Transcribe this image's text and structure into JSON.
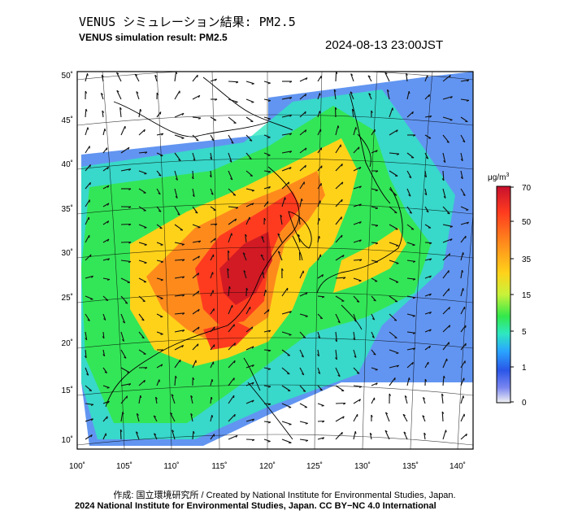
{
  "header": {
    "title_ja": "VENUS シミュレーション結果: PM2.5",
    "title_en": "VENUS simulation result: PM2.5",
    "timestamp": "2024-08-13 23:00JST"
  },
  "map": {
    "lon_ticks": [
      "100˚",
      "105˚",
      "110˚",
      "115˚",
      "120˚",
      "125˚",
      "130˚",
      "135˚",
      "140˚"
    ],
    "lat_ticks": [
      "50˚",
      "45˚",
      "40˚",
      "35˚",
      "30˚",
      "25˚",
      "20˚",
      "15˚",
      "10˚"
    ],
    "colors": {
      "land": "#ffffff",
      "coast": "#000000",
      "grid": "#000000"
    }
  },
  "colorbar": {
    "unit": "μg/m",
    "unit_sup": "3",
    "labels": [
      "70",
      "50",
      "35",
      "15",
      "5",
      "1",
      "0"
    ],
    "colors": [
      "#c8102e",
      "#ff3b1f",
      "#ff8a1c",
      "#ffd21a",
      "#c9f23a",
      "#33e84a",
      "#2ee8c0",
      "#2aa6ff",
      "#2a56e8",
      "#7a86f0",
      "#f2f2f2"
    ]
  },
  "footer": {
    "credit_line": "作成: 国立環境研究所 / Created by National Institute for Environmental Studies, Japan.",
    "copyright_line": "2024 National Institute for Environmental Studies, Japan. CC BY−NC 4.0 International"
  }
}
